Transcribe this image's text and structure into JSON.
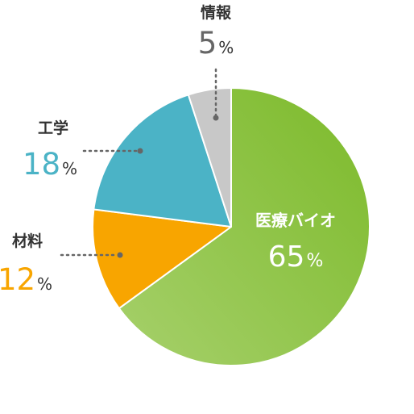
{
  "chart_data": {
    "type": "pie",
    "start_angle_deg": 0,
    "direction": "clockwise",
    "slices": [
      {
        "label": "医療バイオ",
        "value": 65,
        "value_text": "65",
        "unit": "%",
        "color": "#7cba2a",
        "color_light": "#a6d06b"
      },
      {
        "label": "材料",
        "value": 12,
        "value_text": "12",
        "unit": "%",
        "color": "#f8a500",
        "color_light": "#f8a500"
      },
      {
        "label": "工学",
        "value": 18,
        "value_text": "18",
        "unit": "%",
        "color": "#4bb3c6",
        "color_light": "#4bb3c6"
      },
      {
        "label": "情報",
        "value": 5,
        "value_text": "5",
        "unit": "%",
        "color": "#c8c8c8",
        "color_light": "#c8c8c8"
      }
    ],
    "label_value_colors": {
      "情報": "#666666",
      "工学": "#4bb3c6",
      "材料": "#f8a500"
    },
    "leader_line_color": "#666666"
  }
}
